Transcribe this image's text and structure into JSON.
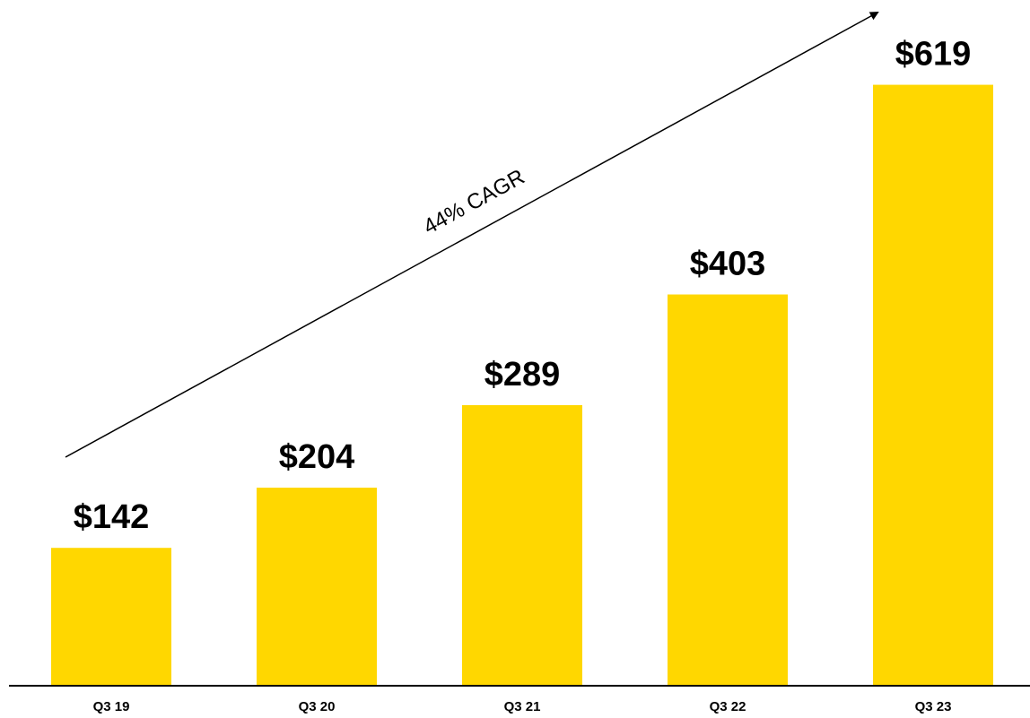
{
  "chart_data": {
    "type": "bar",
    "categories": [
      "Q3 19",
      "Q3 20",
      "Q3 21",
      "Q3 22",
      "Q3 23"
    ],
    "values": [
      142,
      204,
      289,
      403,
      619
    ],
    "value_labels": [
      "$142",
      "$204",
      "$289",
      "$403",
      "$619"
    ],
    "ylim": [
      0,
      650
    ],
    "grid": false,
    "annotations": [
      {
        "text": "44% CAGR",
        "type": "arrow"
      }
    ],
    "colors": {
      "bar": "#FFD700",
      "axis": "#000000",
      "text": "#000000"
    }
  }
}
